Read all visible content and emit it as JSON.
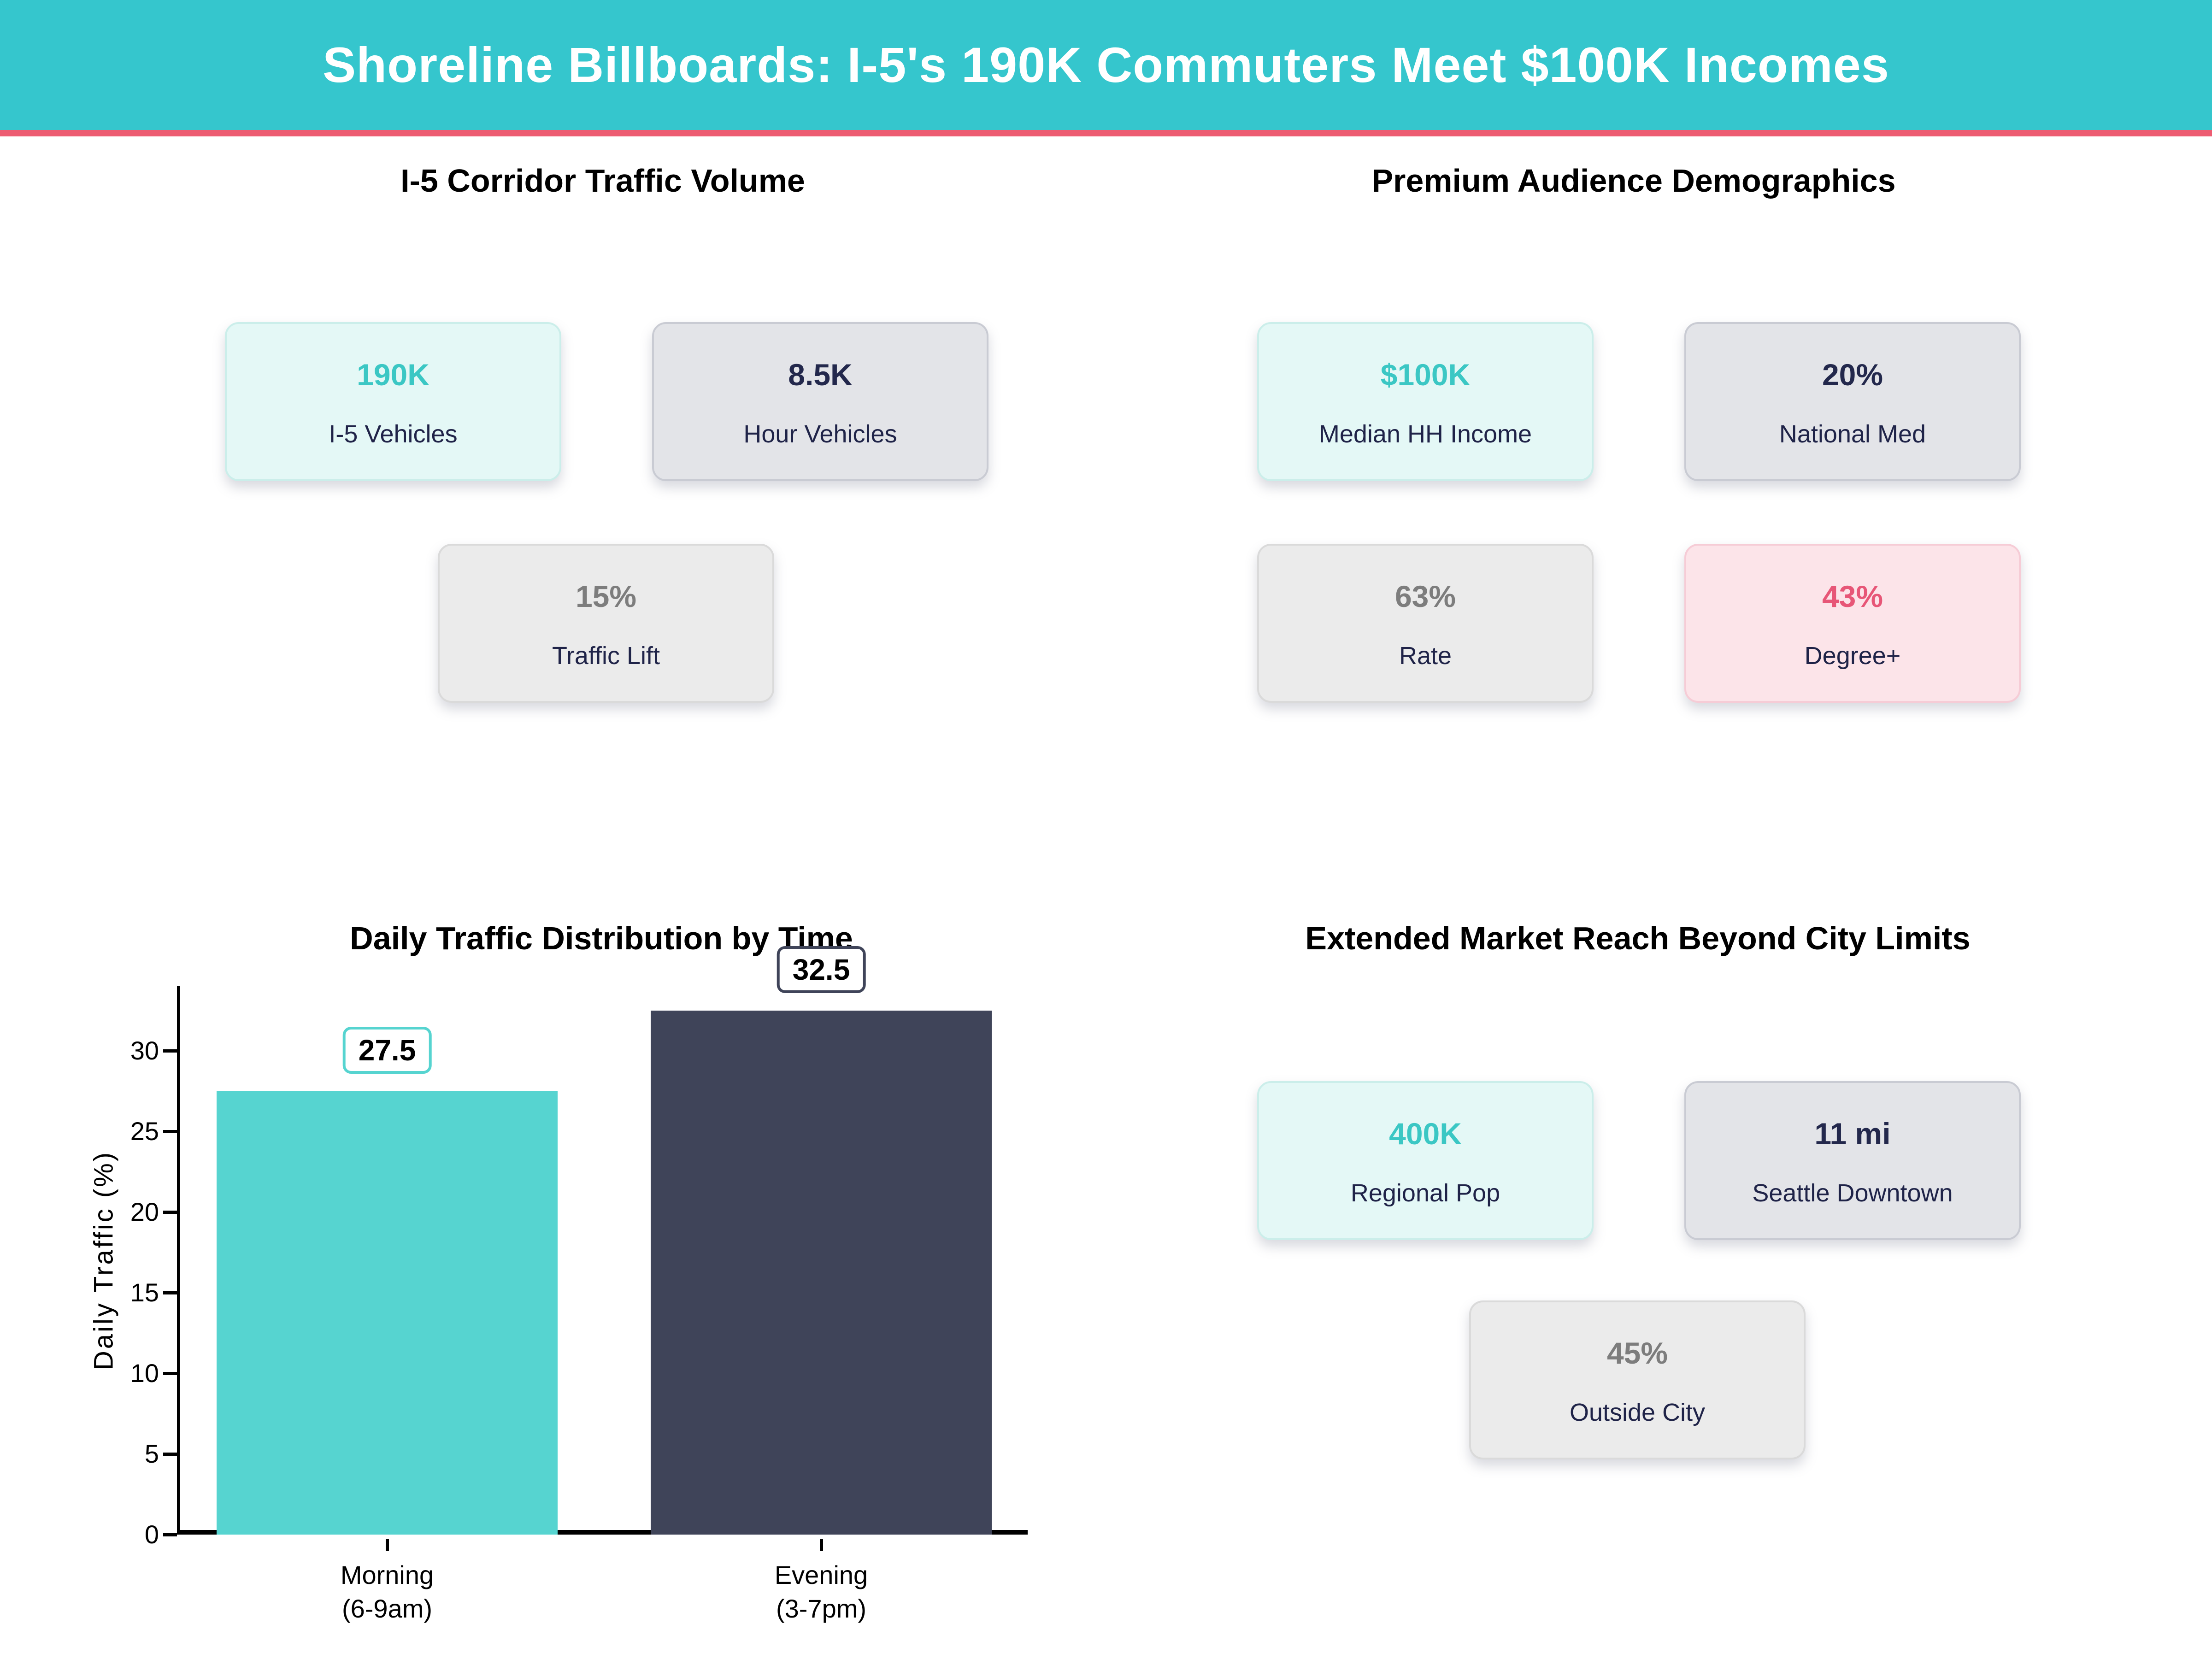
{
  "header": {
    "title": "Shoreline Billboards: I-5's 190K Commuters Meet $100K Incomes"
  },
  "colors": {
    "header_bg": "#35c6cd",
    "accent_stripe": "#ed5c72",
    "teal_value": "#3bc7c4",
    "navy_text": "#1f2348",
    "gray_value": "#7d7d7d",
    "pink_value": "#e75677",
    "mint_card_bg": "#e4f8f6",
    "gray_card_bg": "#e3e4e8",
    "lightgray_card_bg": "#ebebeb",
    "pink_card_bg": "#fce4e9",
    "bar_teal": "#56d4d0",
    "bar_navy": "#3f4459"
  },
  "sections": {
    "traffic": {
      "title": "I-5 Corridor Traffic Volume",
      "cards": [
        {
          "value": "190K",
          "label": "I-5 Vehicles",
          "tone": "teal"
        },
        {
          "value": "8.5K",
          "label": "Hour Vehicles",
          "tone": "navy"
        },
        {
          "value": "15%",
          "label": "Traffic Lift",
          "tone": "gray"
        }
      ]
    },
    "demographics": {
      "title": "Premium Audience Demographics",
      "cards": [
        {
          "value": "$100K",
          "label": "Median HH Income",
          "tone": "teal"
        },
        {
          "value": "20%",
          "label": "National Med",
          "tone": "navy"
        },
        {
          "value": "63%",
          "label": "Rate",
          "tone": "gray"
        },
        {
          "value": "43%",
          "label": "Degree+",
          "tone": "pink"
        }
      ]
    },
    "reach": {
      "title": "Extended Market Reach Beyond City Limits",
      "cards": [
        {
          "value": "400K",
          "label": "Regional Pop",
          "tone": "teal"
        },
        {
          "value": "11 mi",
          "label": "Seattle Downtown",
          "tone": "navy"
        },
        {
          "value": "45%",
          "label": "Outside City",
          "tone": "gray"
        }
      ]
    }
  },
  "chart_data": {
    "type": "bar",
    "title": "Daily Traffic Distribution by Time",
    "categories": [
      "Morning (6-9am)",
      "Evening (3-7pm)"
    ],
    "category_lines": [
      [
        "Morning",
        "(6-9am)"
      ],
      [
        "Evening",
        "(3-7pm)"
      ]
    ],
    "values": [
      27.5,
      32.5
    ],
    "data_labels": [
      "27.5",
      "32.5"
    ],
    "bar_colors": [
      "#56d4d0",
      "#3f4459"
    ],
    "xlabel": "",
    "ylabel": "Daily Traffic (%)",
    "yticks": [
      0,
      5,
      10,
      15,
      20,
      25,
      30
    ],
    "ylim": [
      0,
      34
    ],
    "grid": false,
    "legend": null
  }
}
